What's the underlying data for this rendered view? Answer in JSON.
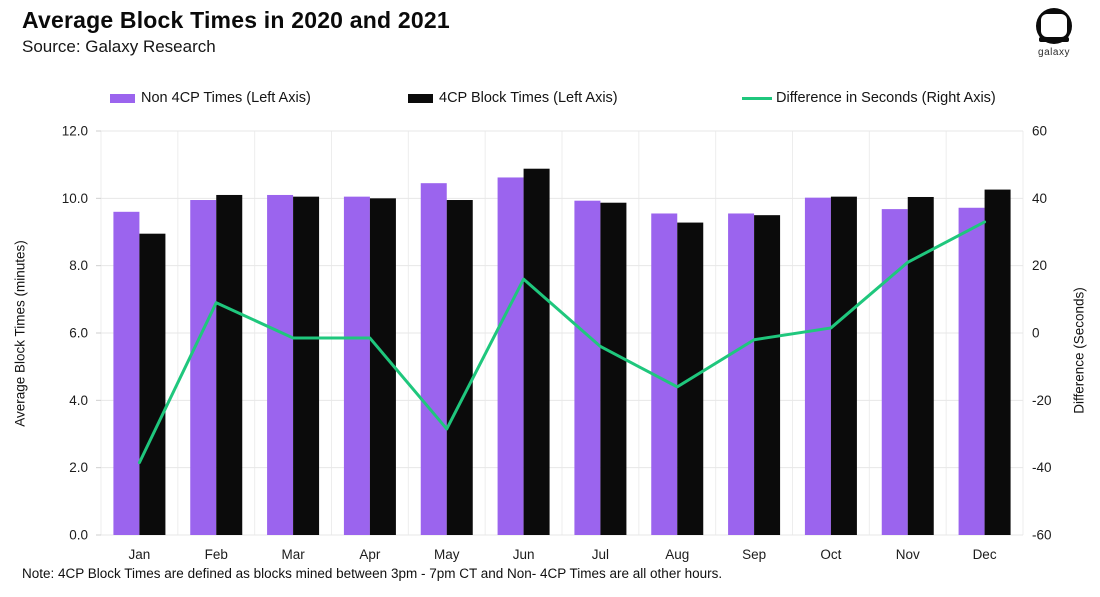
{
  "header": {
    "title": "Average Block Times in 2020 and 2021",
    "source": "Source: Galaxy Research"
  },
  "logo": {
    "word": "galaxy"
  },
  "legend": [
    {
      "label": "Non 4CP Times (Left Axis)",
      "type": "bar",
      "color": "#9b64ee"
    },
    {
      "label": "4CP Block Times (Left Axis)",
      "type": "bar",
      "color": "#0b0b0b"
    },
    {
      "label": "Difference in Seconds (Right Axis)",
      "type": "line",
      "color": "#1fc77d"
    }
  ],
  "chart_data": {
    "type": "bar",
    "subtype": "grouped-bars-with-line",
    "categories": [
      "Jan",
      "Feb",
      "Mar",
      "Apr",
      "May",
      "Jun",
      "Jul",
      "Aug",
      "Sep",
      "Oct",
      "Nov",
      "Dec"
    ],
    "series": [
      {
        "name": "Non 4CP Times (Left Axis)",
        "type": "bar",
        "axis": "left",
        "color": "#9b64ee",
        "values": [
          9.6,
          9.95,
          10.1,
          10.05,
          10.45,
          10.62,
          9.93,
          9.55,
          9.55,
          10.02,
          9.68,
          9.72
        ]
      },
      {
        "name": "4CP Block Times (Left Axis)",
        "type": "bar",
        "axis": "left",
        "color": "#0b0b0b",
        "values": [
          8.95,
          10.1,
          10.05,
          10.0,
          9.95,
          10.88,
          9.87,
          9.28,
          9.5,
          10.05,
          10.04,
          10.26
        ]
      },
      {
        "name": "Difference in Seconds (Right Axis)",
        "type": "line",
        "axis": "right",
        "color": "#1fc77d",
        "values": [
          -38.5,
          9,
          -1.5,
          -1.5,
          -28.5,
          16,
          -4,
          -16,
          -2,
          1.5,
          21,
          33
        ]
      }
    ],
    "left_axis": {
      "label": "Average Block Times (minutes)",
      "min": 0,
      "max": 12,
      "ticks": [
        "12.0",
        "10.0",
        "8.0",
        "6.0",
        "4.0",
        "2.0",
        "0.0"
      ]
    },
    "right_axis": {
      "label": "Difference (Seconds)",
      "min": -60,
      "max": 60,
      "ticks": [
        "60",
        "40",
        "20",
        "0",
        "-20",
        "-40",
        "-60"
      ]
    },
    "grid": true,
    "legend_position": "top",
    "colors": {
      "grid_h": "#e7e7e7",
      "grid_v": "#ededed",
      "tick_text": "#1c1c1c"
    }
  },
  "note": "Note: 4CP Block Times are defined as blocks mined between 3pm - 7pm CT and Non- 4CP Times are all other hours."
}
